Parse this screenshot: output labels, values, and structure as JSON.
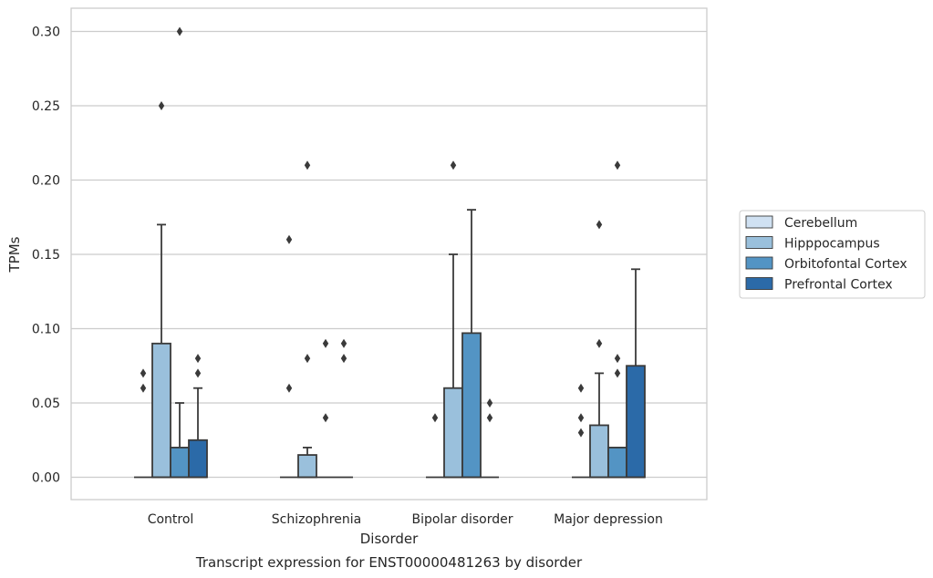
{
  "chart_data": {
    "type": "box",
    "title": "",
    "caption": "Transcript expression for ENST00000481263 by disorder",
    "xlabel": "Disorder",
    "ylabel": "TPMs",
    "ylim": [
      -0.015,
      0.315
    ],
    "yticks": [
      0.0,
      0.05,
      0.1,
      0.15,
      0.2,
      0.25,
      0.3
    ],
    "ytick_labels": [
      "0.00",
      "0.05",
      "0.10",
      "0.15",
      "0.20",
      "0.25",
      "0.30"
    ],
    "grid": "horizontal",
    "legend_position": "right",
    "categories": [
      "Control",
      "Schizophrenia",
      "Bipolar disorder",
      "Major depression"
    ],
    "series": [
      {
        "name": "Cerebellum",
        "color": "#d0e1f2",
        "boxes": [
          {
            "q1": 0.0,
            "median": 0.0,
            "q3": 0.0,
            "whisker_low": 0.0,
            "whisker_high": 0.0,
            "outliers": [
              0.06,
              0.07
            ]
          },
          {
            "q1": 0.0,
            "median": 0.0,
            "q3": 0.0,
            "whisker_low": 0.0,
            "whisker_high": 0.0,
            "outliers": [
              0.06,
              0.16
            ]
          },
          {
            "q1": 0.0,
            "median": 0.0,
            "q3": 0.0,
            "whisker_low": 0.0,
            "whisker_high": 0.0,
            "outliers": [
              0.04
            ]
          },
          {
            "q1": 0.0,
            "median": 0.0,
            "q3": 0.0,
            "whisker_low": 0.0,
            "whisker_high": 0.0,
            "outliers": [
              0.03,
              0.04,
              0.06
            ]
          }
        ]
      },
      {
        "name": "Hipppocampus",
        "color": "#9ac0dc",
        "boxes": [
          {
            "q1": 0.0,
            "median": 0.0,
            "q3": 0.09,
            "whisker_low": 0.0,
            "whisker_high": 0.17,
            "outliers": [
              0.25
            ]
          },
          {
            "q1": 0.0,
            "median": 0.0,
            "q3": 0.015,
            "whisker_low": 0.0,
            "whisker_high": 0.02,
            "outliers": [
              0.08,
              0.21
            ]
          },
          {
            "q1": 0.0,
            "median": 0.0,
            "q3": 0.06,
            "whisker_low": 0.0,
            "whisker_high": 0.15,
            "outliers": [
              0.21
            ]
          },
          {
            "q1": 0.0,
            "median": 0.0,
            "q3": 0.035,
            "whisker_low": 0.0,
            "whisker_high": 0.07,
            "outliers": [
              0.09,
              0.17
            ]
          }
        ]
      },
      {
        "name": "Orbitofontal Cortex",
        "color": "#5394c4",
        "boxes": [
          {
            "q1": 0.0,
            "median": 0.0,
            "q3": 0.02,
            "whisker_low": 0.0,
            "whisker_high": 0.05,
            "outliers": [
              0.3
            ]
          },
          {
            "q1": 0.0,
            "median": 0.0,
            "q3": 0.0,
            "whisker_low": 0.0,
            "whisker_high": 0.0,
            "outliers": [
              0.04,
              0.09
            ]
          },
          {
            "q1": 0.0,
            "median": 0.0,
            "q3": 0.097,
            "whisker_low": 0.0,
            "whisker_high": 0.18,
            "outliers": []
          },
          {
            "q1": 0.0,
            "median": 0.0,
            "q3": 0.02,
            "whisker_low": 0.0,
            "whisker_high": 0.02,
            "outliers": [
              0.07,
              0.08,
              0.21
            ]
          }
        ]
      },
      {
        "name": "Prefrontal Cortex",
        "color": "#2b6aa8",
        "boxes": [
          {
            "q1": 0.0,
            "median": 0.0,
            "q3": 0.025,
            "whisker_low": 0.0,
            "whisker_high": 0.06,
            "outliers": [
              0.07,
              0.08
            ]
          },
          {
            "q1": 0.0,
            "median": 0.0,
            "q3": 0.0,
            "whisker_low": 0.0,
            "whisker_high": 0.0,
            "outliers": [
              0.08,
              0.09
            ]
          },
          {
            "q1": 0.0,
            "median": 0.0,
            "q3": 0.0,
            "whisker_low": 0.0,
            "whisker_high": 0.0,
            "outliers": [
              0.04,
              0.05
            ]
          },
          {
            "q1": 0.0,
            "median": 0.0,
            "q3": 0.075,
            "whisker_low": 0.0,
            "whisker_high": 0.14,
            "outliers": []
          }
        ]
      }
    ]
  }
}
